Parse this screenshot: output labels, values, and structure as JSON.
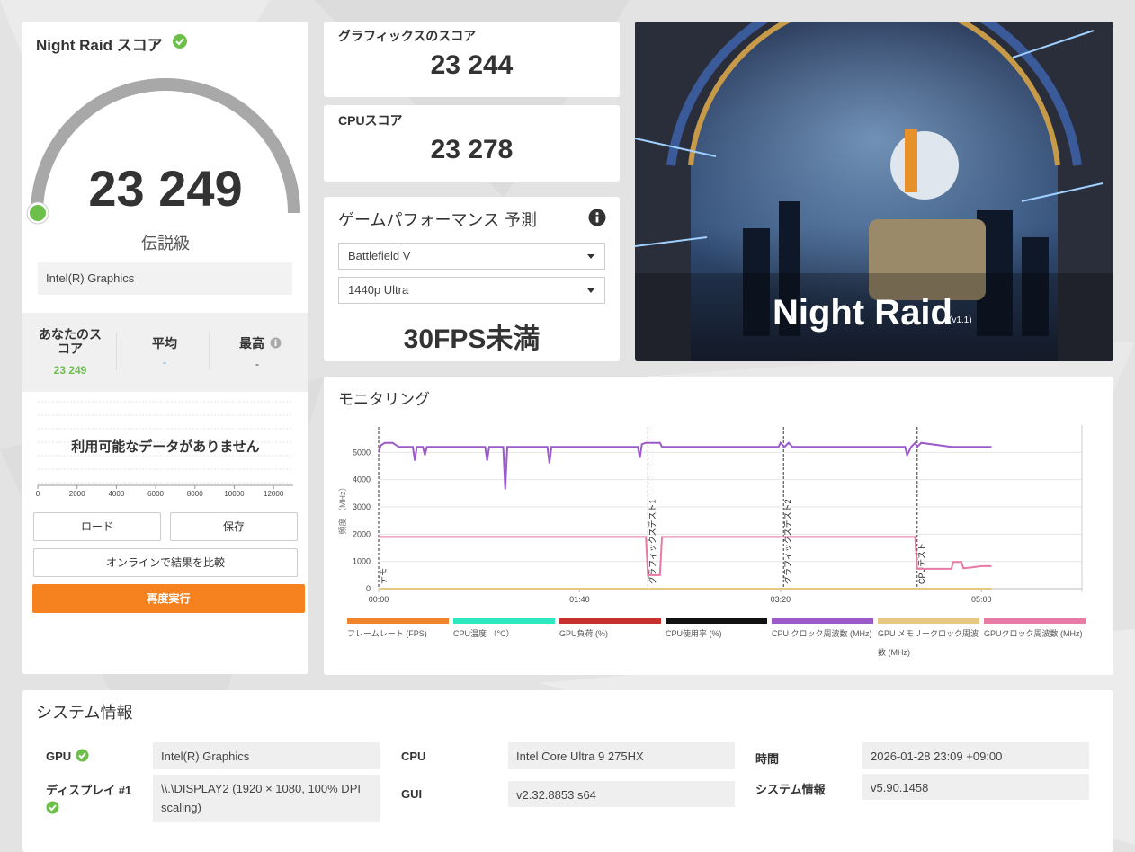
{
  "score_panel": {
    "title": "Night Raid スコア",
    "score": "23 249",
    "rank": "伝説級",
    "gpu": "Intel(R) Graphics",
    "stats": [
      {
        "label": "あなたのスコア",
        "value": "23 249"
      },
      {
        "label": "平均",
        "value": "-"
      },
      {
        "label": "最高",
        "value": "-"
      }
    ],
    "no_data": "利用可能なデータがありません",
    "distribution": {
      "xlim": [
        0,
        13000
      ],
      "xticks": [
        0,
        2000,
        4000,
        6000,
        8000,
        10000,
        12000
      ]
    },
    "buttons": {
      "load": "ロード",
      "save": "保存",
      "compare": "オンラインで結果を比較",
      "rerun": "再度実行"
    }
  },
  "graphics_score": {
    "label": "グラフィックスのスコア",
    "value": "23 244"
  },
  "cpu_score": {
    "label": "CPUスコア",
    "value": "23 278"
  },
  "game_performance": {
    "title": "ゲームパフォーマンス 予測",
    "game": "Battlefield V",
    "preset": "1440p Ultra",
    "result": "30FPS未満"
  },
  "banner": {
    "title": "Night Raid",
    "version": "(v1.1)"
  },
  "monitoring": {
    "title": "モニタリング"
  },
  "chart_data": {
    "type": "line",
    "y_label": "頻度 （MHz）",
    "xlim": [
      0,
      350
    ],
    "xticks": [
      {
        "value": 0,
        "label": "00:00"
      },
      {
        "value": 100,
        "label": "01:40"
      },
      {
        "value": 200,
        "label": "03:20"
      },
      {
        "value": 300,
        "label": "05:00"
      }
    ],
    "ylim": [
      0,
      6000
    ],
    "yticks": [
      0,
      1000,
      2000,
      3000,
      4000,
      5000
    ],
    "grid": true,
    "annotations": [
      {
        "x": 0,
        "label": "デモ"
      },
      {
        "x": 134,
        "label": "グラフィックステスト1"
      },
      {
        "x": 201.5,
        "label": "グラフィックステスト2"
      },
      {
        "x": 268,
        "label": "CPUテスト"
      }
    ],
    "x": [
      0,
      1,
      3,
      7,
      10,
      17,
      18,
      19,
      22,
      23,
      24,
      53,
      54,
      55,
      62,
      63,
      64,
      84,
      85,
      86,
      129,
      130,
      131,
      133,
      134,
      135,
      140,
      141,
      199,
      200,
      202,
      204,
      206,
      262,
      263,
      265,
      267,
      268,
      270,
      285,
      286,
      290,
      291,
      295,
      300,
      305
    ],
    "series": [
      {
        "name": "フレームレート (FPS)",
        "color": "#f0842a"
      },
      {
        "name": "CPU温度 （°C）",
        "color": "#2ee8c0"
      },
      {
        "name": "GPU負荷 (%)",
        "color": "#c8302e"
      },
      {
        "name": "CPU使用率 (%)",
        "color": "#111111"
      },
      {
        "name": "CPU クロック周波数 (MHz)",
        "color": "#9b59c9",
        "values": [
          5000,
          5250,
          5350,
          5350,
          5200,
          5200,
          4700,
          5200,
          5200,
          4900,
          5200,
          5200,
          4700,
          5200,
          5200,
          3650,
          5200,
          5200,
          4600,
          5200,
          5200,
          4800,
          5300,
          5350,
          5350,
          5350,
          5350,
          5200,
          5200,
          5350,
          5200,
          5350,
          5200,
          5200,
          4900,
          5200,
          5350,
          5200,
          5350,
          5200,
          5200,
          5200,
          5200,
          5200,
          5200,
          5200
        ]
      },
      {
        "name": "GPU メモリークロック周波数 (MHz)",
        "color": "#e6c883",
        "values": [
          0,
          0,
          0,
          0,
          0,
          0,
          0,
          0,
          0,
          0,
          0,
          0,
          0,
          0,
          0,
          0,
          0,
          0,
          0,
          0,
          0,
          0,
          0,
          0,
          0,
          0,
          0,
          0,
          0,
          0,
          0,
          0,
          0,
          0,
          0,
          0,
          0,
          0,
          0,
          0,
          0,
          0,
          0,
          0,
          0,
          0
        ]
      },
      {
        "name": "GPUクロック周波数 (MHz)",
        "color": "#e87aa6",
        "values": [
          1900,
          1900,
          1900,
          1900,
          1900,
          1900,
          1900,
          1900,
          1900,
          1900,
          1900,
          1900,
          1900,
          1900,
          1900,
          1900,
          1900,
          1900,
          1900,
          1900,
          1900,
          1900,
          1900,
          1900,
          500,
          500,
          500,
          1900,
          1900,
          1900,
          1900,
          1900,
          1900,
          1900,
          1900,
          1900,
          1900,
          730,
          730,
          730,
          980,
          980,
          750,
          780,
          830,
          830
        ]
      }
    ]
  },
  "system_info": {
    "title": "システム情報",
    "items": [
      {
        "label": "GPU",
        "value": "Intel(R) Graphics"
      },
      {
        "label": "ディスプレイ #1",
        "value": "\\\\.\\DISPLAY2 (1920 × 1080, 100% DPI scaling)"
      },
      {
        "label": "CPU",
        "value": "Intel Core Ultra 9 275HX"
      },
      {
        "label": "GUI",
        "value": "v2.32.8853 s64"
      },
      {
        "label": "時間",
        "value": "2026-01-28 23:09 +09:00"
      },
      {
        "label": "システム情報",
        "value": "v5.90.1458"
      }
    ]
  }
}
